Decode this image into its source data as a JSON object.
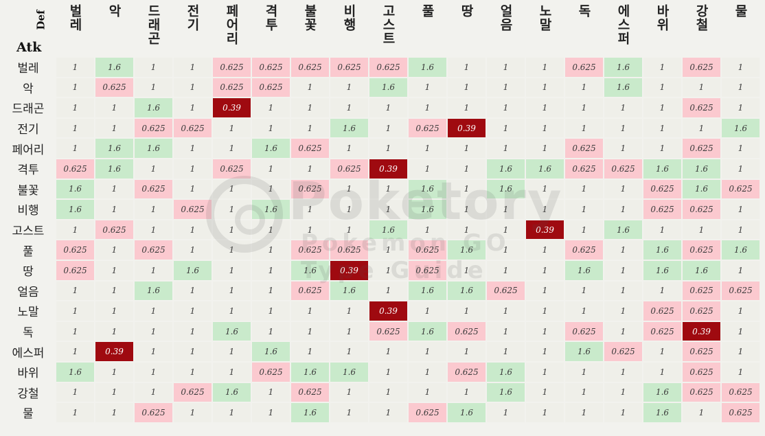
{
  "corner": {
    "def_label": "Def",
    "atk_label": "Atk"
  },
  "types": [
    "벌레",
    "악",
    "드래곤",
    "전기",
    "페어리",
    "격투",
    "불꽃",
    "비행",
    "고스트",
    "풀",
    "땅",
    "얼음",
    "노말",
    "독",
    "에스퍼",
    "바위",
    "강철",
    "물"
  ],
  "rows": [
    {
      "type": "벌레",
      "values": [
        "1",
        "1.6",
        "1",
        "1",
        "0.625",
        "0.625",
        "0.625",
        "0.625",
        "0.625",
        "1.6",
        "1",
        "1",
        "1",
        "0.625",
        "1.6",
        "1",
        "0.625",
        "1"
      ]
    },
    {
      "type": "악",
      "values": [
        "1",
        "0.625",
        "1",
        "1",
        "0.625",
        "0.625",
        "1",
        "1",
        "1.6",
        "1",
        "1",
        "1",
        "1",
        "1",
        "1.6",
        "1",
        "1",
        "1"
      ]
    },
    {
      "type": "드래곤",
      "values": [
        "1",
        "1",
        "1.6",
        "1",
        "0.39",
        "1",
        "1",
        "1",
        "1",
        "1",
        "1",
        "1",
        "1",
        "1",
        "1",
        "1",
        "0.625",
        "1"
      ]
    },
    {
      "type": "전기",
      "values": [
        "1",
        "1",
        "0.625",
        "0.625",
        "1",
        "1",
        "1",
        "1.6",
        "1",
        "0.625",
        "0.39",
        "1",
        "1",
        "1",
        "1",
        "1",
        "1",
        "1.6"
      ]
    },
    {
      "type": "페어리",
      "values": [
        "1",
        "1.6",
        "1.6",
        "1",
        "1",
        "1.6",
        "0.625",
        "1",
        "1",
        "1",
        "1",
        "1",
        "1",
        "0.625",
        "1",
        "1",
        "0.625",
        "1"
      ]
    },
    {
      "type": "격투",
      "values": [
        "0.625",
        "1.6",
        "1",
        "1",
        "0.625",
        "1",
        "1",
        "0.625",
        "0.39",
        "1",
        "1",
        "1.6",
        "1.6",
        "0.625",
        "0.625",
        "1.6",
        "1.6",
        "1"
      ]
    },
    {
      "type": "불꽃",
      "values": [
        "1.6",
        "1",
        "0.625",
        "1",
        "1",
        "1",
        "0.625",
        "1",
        "1",
        "1.6",
        "1",
        "1.6",
        "1",
        "1",
        "1",
        "0.625",
        "1.6",
        "0.625"
      ]
    },
    {
      "type": "비행",
      "values": [
        "1.6",
        "1",
        "1",
        "0.625",
        "1",
        "1.6",
        "1",
        "1",
        "1",
        "1.6",
        "1",
        "1",
        "1",
        "1",
        "1",
        "0.625",
        "0.625",
        "1"
      ]
    },
    {
      "type": "고스트",
      "values": [
        "1",
        "0.625",
        "1",
        "1",
        "1",
        "1",
        "1",
        "1",
        "1.6",
        "1",
        "1",
        "1",
        "0.39",
        "1",
        "1.6",
        "1",
        "1",
        "1"
      ]
    },
    {
      "type": "풀",
      "values": [
        "0.625",
        "1",
        "0.625",
        "1",
        "1",
        "1",
        "0.625",
        "0.625",
        "1",
        "0.625",
        "1.6",
        "1",
        "1",
        "0.625",
        "1",
        "1.6",
        "0.625",
        "1.6"
      ]
    },
    {
      "type": "땅",
      "values": [
        "0.625",
        "1",
        "1",
        "1.6",
        "1",
        "1",
        "1.6",
        "0.39",
        "1",
        "0.625",
        "1",
        "1",
        "1",
        "1.6",
        "1",
        "1.6",
        "1.6",
        "1"
      ]
    },
    {
      "type": "얼음",
      "values": [
        "1",
        "1",
        "1.6",
        "1",
        "1",
        "1",
        "0.625",
        "1.6",
        "1",
        "1.6",
        "1.6",
        "0.625",
        "1",
        "1",
        "1",
        "1",
        "0.625",
        "0.625"
      ]
    },
    {
      "type": "노말",
      "values": [
        "1",
        "1",
        "1",
        "1",
        "1",
        "1",
        "1",
        "1",
        "0.39",
        "1",
        "1",
        "1",
        "1",
        "1",
        "1",
        "0.625",
        "0.625",
        "1"
      ]
    },
    {
      "type": "독",
      "values": [
        "1",
        "1",
        "1",
        "1",
        "1.6",
        "1",
        "1",
        "1",
        "0.625",
        "1.6",
        "0.625",
        "1",
        "1",
        "0.625",
        "1",
        "0.625",
        "0.39",
        "1"
      ]
    },
    {
      "type": "에스퍼",
      "values": [
        "1",
        "0.39",
        "1",
        "1",
        "1",
        "1.6",
        "1",
        "1",
        "1",
        "1",
        "1",
        "1",
        "1",
        "1.6",
        "0.625",
        "1",
        "0.625",
        "1"
      ]
    },
    {
      "type": "바위",
      "values": [
        "1.6",
        "1",
        "1",
        "1",
        "1",
        "0.625",
        "1.6",
        "1.6",
        "1",
        "1",
        "0.625",
        "1.6",
        "1",
        "1",
        "1",
        "1",
        "0.625",
        "1"
      ]
    },
    {
      "type": "강철",
      "values": [
        "1",
        "1",
        "1",
        "0.625",
        "1.6",
        "1",
        "0.625",
        "1",
        "1",
        "1",
        "1",
        "1.6",
        "1",
        "1",
        "1",
        "1.6",
        "0.625",
        "0.625"
      ]
    },
    {
      "type": "물",
      "values": [
        "1",
        "1",
        "0.625",
        "1",
        "1",
        "1",
        "1.6",
        "1",
        "1",
        "0.625",
        "1.6",
        "1",
        "1",
        "1",
        "1",
        "1.6",
        "1",
        "0.625"
      ]
    }
  ],
  "colors": {
    "neutral": "#efefe9",
    "super_effective": "#c9eacb",
    "not_very_effective": "#fbc9cf",
    "immune_like": "#9f0a10"
  },
  "watermark": {
    "text": "Poketory",
    "subtitle": "Pokemon GO Type Guide"
  }
}
